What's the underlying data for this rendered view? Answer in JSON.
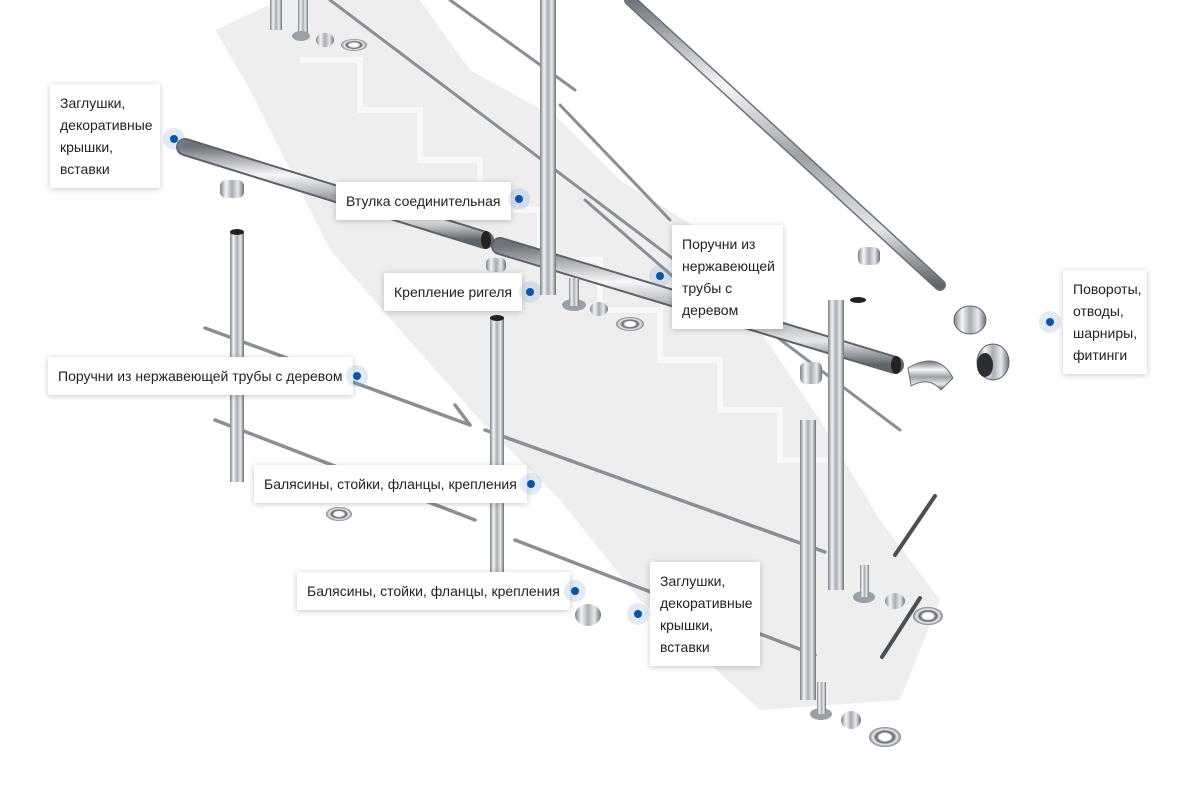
{
  "colors": {
    "accent": "#0b55a6"
  },
  "callouts": [
    {
      "id": "caps-top",
      "text": "Заглушки, декоративные крышки, вставки"
    },
    {
      "id": "bushing",
      "text": "Втулка соединительная"
    },
    {
      "id": "handrail-right",
      "text": "Поручни из нержавеющей трубы с деревом"
    },
    {
      "id": "crossbar-mount",
      "text": "Крепление ригеля"
    },
    {
      "id": "turns",
      "text": "Повороты, отводы, шарниры, фитинги"
    },
    {
      "id": "handrail-left",
      "text": "Поручни из нержавеющей трубы с деревом"
    },
    {
      "id": "balusters-1",
      "text": "Балясины, стойки, фланцы, крепления"
    },
    {
      "id": "balusters-2",
      "text": "Балясины, стойки, фланцы, крепления"
    },
    {
      "id": "caps-bottom",
      "text": "Заглушки, декоративные крышки, вставки"
    }
  ]
}
